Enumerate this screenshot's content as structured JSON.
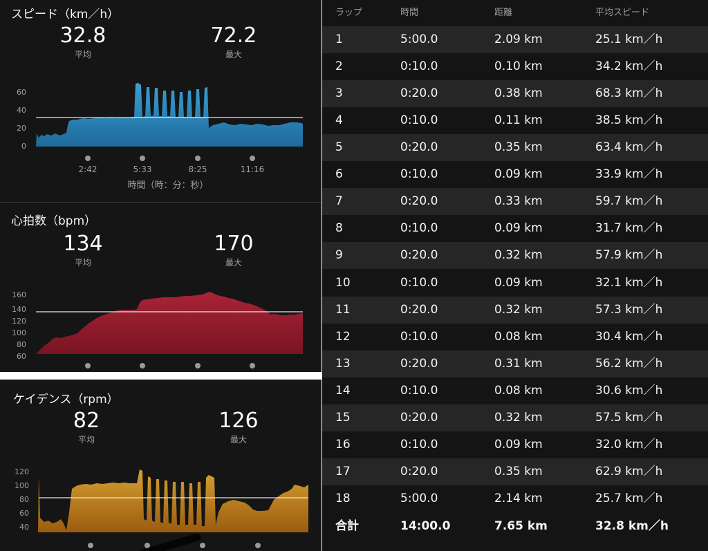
{
  "speed": {
    "title": "スピード（km／h）",
    "avg": "32.8",
    "avg_label": "平均",
    "max": "72.2",
    "max_label": "最大",
    "yticks": [
      "60",
      "40",
      "20",
      "0"
    ],
    "xticks": [
      "2:42",
      "5:33",
      "8:25",
      "11:16"
    ],
    "xlabel": "時間（時：分：秒）",
    "color": "#2e8cbf"
  },
  "heart": {
    "title": "心拍数（bpm）",
    "avg": "134",
    "avg_label": "平均",
    "max": "170",
    "max_label": "最大",
    "yticks": [
      "160",
      "140",
      "120",
      "100",
      "80",
      "60"
    ],
    "color": "#8e1d2c"
  },
  "cadence": {
    "title": "ケイデンス（rpm）",
    "avg": "82",
    "avg_label": "平均",
    "max": "126",
    "max_label": "最大",
    "yticks": [
      "120",
      "100",
      "80",
      "60",
      "40"
    ],
    "color": "#c9871a"
  },
  "laps": {
    "headers": [
      "ラップ",
      "時間",
      "距離",
      "平均スピード"
    ],
    "rows": [
      [
        "1",
        "5:00.0",
        "2.09 km",
        "25.1 km／h"
      ],
      [
        "2",
        "0:10.0",
        "0.10 km",
        "34.2 km／h"
      ],
      [
        "3",
        "0:20.0",
        "0.38 km",
        "68.3 km／h"
      ],
      [
        "4",
        "0:10.0",
        "0.11 km",
        "38.5 km／h"
      ],
      [
        "5",
        "0:20.0",
        "0.35 km",
        "63.4 km／h"
      ],
      [
        "6",
        "0:10.0",
        "0.09 km",
        "33.9 km／h"
      ],
      [
        "7",
        "0:20.0",
        "0.33 km",
        "59.7 km／h"
      ],
      [
        "8",
        "0:10.0",
        "0.09 km",
        "31.7 km／h"
      ],
      [
        "9",
        "0:20.0",
        "0.32 km",
        "57.9 km／h"
      ],
      [
        "10",
        "0:10.0",
        "0.09 km",
        "32.1 km／h"
      ],
      [
        "11",
        "0:20.0",
        "0.32 km",
        "57.3 km／h"
      ],
      [
        "12",
        "0:10.0",
        "0.08 km",
        "30.4 km／h"
      ],
      [
        "13",
        "0:20.0",
        "0.31 km",
        "56.2 km／h"
      ],
      [
        "14",
        "0:10.0",
        "0.08 km",
        "30.6 km／h"
      ],
      [
        "15",
        "0:20.0",
        "0.32 km",
        "57.5 km／h"
      ],
      [
        "16",
        "0:10.0",
        "0.09 km",
        "32.0 km／h"
      ],
      [
        "17",
        "0:20.0",
        "0.35 km",
        "62.9 km／h"
      ],
      [
        "18",
        "5:00.0",
        "2.14 km",
        "25.7 km／h"
      ]
    ],
    "total": [
      "合計",
      "14:00.0",
      "7.65 km",
      "32.8 km／h"
    ]
  }
}
